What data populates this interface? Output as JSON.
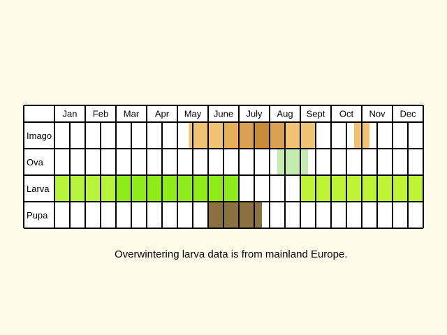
{
  "chart_data": {
    "type": "table",
    "months": [
      "Jan",
      "Feb",
      "Mar",
      "Apr",
      "May",
      "June",
      "July",
      "Aug",
      "Sept",
      "Oct",
      "Nov",
      "Dec"
    ],
    "week_columns_per_month": 2,
    "stages": [
      {
        "name": "Imago",
        "blocks": [
          {
            "start_week": 8.75,
            "end_week": 11,
            "color": "#f2c274"
          },
          {
            "start_week": 11,
            "end_week": 12,
            "color": "#e8ae5a"
          },
          {
            "start_week": 12,
            "end_week": 13,
            "color": "#d9a053"
          },
          {
            "start_week": 13,
            "end_week": 14,
            "color": "#c88938"
          },
          {
            "start_week": 14,
            "end_week": 15,
            "color": "#d9a053"
          },
          {
            "start_week": 15,
            "end_week": 17,
            "color": "#f2c274"
          },
          {
            "start_week": 19.5,
            "end_week": 20.5,
            "color": "#f2c274"
          }
        ]
      },
      {
        "name": "Ova",
        "blocks": [
          {
            "start_week": 14.5,
            "end_week": 16.5,
            "color": "#c4ebb0"
          }
        ]
      },
      {
        "name": "Larva",
        "blocks": [
          {
            "start_week": 0,
            "end_week": 4,
            "color": "#b6f43c"
          },
          {
            "start_week": 4,
            "end_week": 12,
            "color": "#8fec1a"
          },
          {
            "start_week": 16,
            "end_week": 24,
            "color": "#bdf536"
          }
        ]
      },
      {
        "name": "Pupa",
        "blocks": [
          {
            "start_week": 10,
            "end_week": 13.5,
            "color": "#8b7040"
          }
        ]
      }
    ]
  },
  "note": "Overwintering larva data is from mainland Europe."
}
